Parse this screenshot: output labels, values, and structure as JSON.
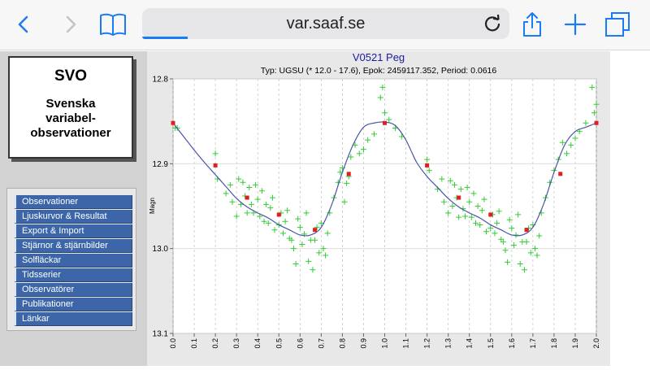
{
  "browser": {
    "url": "var.saaf.se",
    "icons": [
      "back-icon",
      "forward-icon",
      "bookmarks-icon",
      "reload-icon",
      "share-icon",
      "new-tab-icon",
      "tabs-icon"
    ]
  },
  "logo": {
    "title": "SVO",
    "subtitle_lines": [
      "Svenska",
      "variabel-",
      "observationer"
    ]
  },
  "nav": {
    "items": [
      "Observationer",
      "Ljuskurvor & Resultat",
      "Export & Import",
      "Stjärnor & stjärnbilder",
      "Solfläckar",
      "Tidsserier",
      "Observatörer",
      "Publikationer",
      "Länkar"
    ]
  },
  "colors": {
    "title": "#1a1aa0",
    "curve": "#4a55a8",
    "observation": "#33cc33",
    "bin": "#e02020",
    "nav": "#3c66a8"
  },
  "chart_data": {
    "type": "scatter",
    "title": "V0521 Peg",
    "subtitle": "Typ: UGSU (* 12.0 - 17.6), Epok: 2459117.352, Period: 0.0616",
    "xlabel": "",
    "ylabel": "Magn",
    "xlim": [
      0.0,
      2.0
    ],
    "ylim": [
      12.8,
      13.1
    ],
    "y_inverted": false,
    "x_ticks": [
      "0.0",
      "0.1",
      "0.2",
      "0.3",
      "0.4",
      "0.5",
      "0.6",
      "0.7",
      "0.8",
      "0.9",
      "1.0",
      "1.1",
      "1.2",
      "1.3",
      "1.4",
      "1.5",
      "1.6",
      "1.7",
      "1.8",
      "1.9",
      "2.0"
    ],
    "y_ticks": [
      "12.8",
      "12.9",
      "13.0",
      "13.1"
    ],
    "grid": "vertical dashed, horizontal solid",
    "series": [
      {
        "style": "fitted-curve",
        "x": [
          0.0,
          0.05,
          0.1,
          0.15,
          0.2,
          0.25,
          0.3,
          0.35,
          0.4,
          0.45,
          0.5,
          0.55,
          0.6,
          0.65,
          0.7,
          0.75,
          0.8,
          0.85,
          0.9,
          0.95,
          1.0,
          1.05,
          1.1,
          1.15,
          1.2,
          1.25,
          1.3,
          1.35,
          1.4,
          1.45,
          1.5,
          1.55,
          1.6,
          1.65,
          1.7,
          1.75,
          1.8,
          1.85,
          1.9,
          1.95,
          2.0
        ],
        "y": [
          12.852,
          12.868,
          12.884,
          12.899,
          12.913,
          12.927,
          12.941,
          12.951,
          12.958,
          12.964,
          12.972,
          12.978,
          12.984,
          12.984,
          12.975,
          12.948,
          12.91,
          12.878,
          12.857,
          12.852,
          12.851,
          12.855,
          12.872,
          12.898,
          12.915,
          12.928,
          12.941,
          12.951,
          12.958,
          12.964,
          12.972,
          12.978,
          12.984,
          12.984,
          12.975,
          12.948,
          12.91,
          12.878,
          12.862,
          12.857,
          12.852
        ]
      },
      {
        "style": "bin-means",
        "x": [
          0.0,
          0.2,
          0.35,
          0.5,
          0.67,
          0.83,
          1.0,
          1.2,
          1.35,
          1.5,
          1.67,
          1.83,
          2.0
        ],
        "y": [
          12.852,
          12.902,
          12.94,
          12.96,
          12.978,
          12.912,
          12.852,
          12.902,
          12.94,
          12.96,
          12.978,
          12.912,
          12.852
        ]
      },
      {
        "style": "observations",
        "x": [
          0.01,
          0.02,
          0.2,
          0.21,
          0.25,
          0.27,
          0.28,
          0.3,
          0.31,
          0.32,
          0.33,
          0.34,
          0.35,
          0.36,
          0.37,
          0.38,
          0.39,
          0.4,
          0.41,
          0.42,
          0.43,
          0.44,
          0.45,
          0.46,
          0.47,
          0.48,
          0.5,
          0.51,
          0.52,
          0.53,
          0.54,
          0.55,
          0.56,
          0.57,
          0.58,
          0.59,
          0.6,
          0.61,
          0.62,
          0.63,
          0.64,
          0.65,
          0.66,
          0.67,
          0.68,
          0.69,
          0.7,
          0.71,
          0.72,
          0.73,
          0.74,
          0.76,
          0.78,
          0.79,
          0.8,
          0.81,
          0.82,
          0.83,
          0.84,
          0.86,
          0.88,
          0.9,
          0.92,
          0.95,
          0.98,
          0.99,
          1.0,
          1.02,
          1.05,
          1.08,
          1.2,
          1.21,
          1.25,
          1.27,
          1.28,
          1.3,
          1.31,
          1.32,
          1.33,
          1.34,
          1.35,
          1.36,
          1.37,
          1.38,
          1.39,
          1.4,
          1.41,
          1.42,
          1.43,
          1.44,
          1.45,
          1.46,
          1.47,
          1.48,
          1.5,
          1.51,
          1.52,
          1.53,
          1.54,
          1.55,
          1.56,
          1.57,
          1.58,
          1.59,
          1.6,
          1.61,
          1.62,
          1.63,
          1.64,
          1.65,
          1.66,
          1.67,
          1.68,
          1.69,
          1.7,
          1.71,
          1.72,
          1.73,
          1.74,
          1.76,
          1.78,
          1.8,
          1.82,
          1.84,
          1.86,
          1.88,
          1.9,
          1.92,
          1.95,
          1.98,
          1.99,
          2.0
        ],
        "y": [
          12.858,
          12.858,
          12.888,
          12.918,
          12.935,
          12.925,
          12.945,
          12.962,
          12.918,
          12.948,
          12.922,
          12.938,
          12.958,
          12.928,
          12.948,
          12.958,
          12.925,
          12.942,
          12.962,
          12.932,
          12.968,
          12.948,
          12.97,
          12.952,
          12.94,
          12.978,
          12.972,
          12.958,
          12.982,
          12.968,
          12.955,
          12.988,
          12.99,
          13.0,
          13.018,
          12.965,
          12.975,
          12.995,
          12.983,
          12.958,
          13.015,
          12.99,
          13.025,
          12.99,
          12.975,
          13.005,
          12.97,
          13.0,
          13.008,
          12.982,
          12.958,
          12.94,
          12.922,
          12.91,
          12.905,
          12.945,
          12.923,
          12.915,
          12.892,
          12.878,
          12.888,
          12.883,
          12.872,
          12.865,
          12.822,
          12.81,
          12.84,
          12.848,
          12.858,
          12.868,
          12.895,
          12.908,
          12.93,
          12.918,
          12.945,
          12.958,
          12.92,
          12.95,
          12.925,
          12.94,
          12.963,
          12.93,
          12.953,
          12.962,
          12.928,
          12.945,
          12.963,
          12.935,
          12.97,
          12.95,
          12.972,
          12.955,
          12.942,
          12.98,
          12.976,
          12.96,
          12.982,
          12.97,
          12.956,
          12.989,
          12.992,
          13.002,
          13.016,
          12.966,
          12.976,
          12.996,
          12.984,
          12.96,
          13.018,
          12.992,
          13.025,
          12.992,
          12.976,
          13.005,
          12.972,
          13.0,
          13.008,
          12.985,
          12.958,
          12.94,
          12.922,
          12.908,
          12.895,
          12.875,
          12.888,
          12.878,
          12.87,
          12.862,
          12.852,
          12.81,
          12.84,
          12.83
        ]
      }
    ]
  }
}
